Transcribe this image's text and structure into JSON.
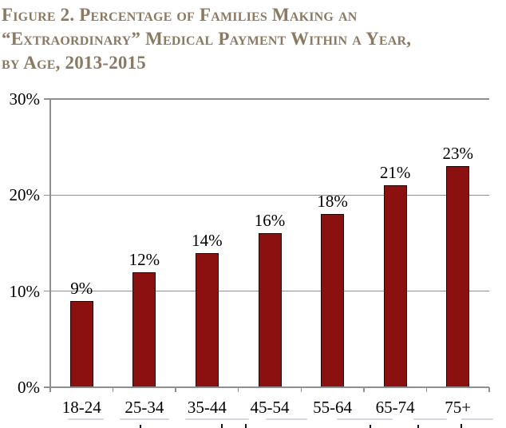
{
  "figure": {
    "title_lines": [
      "Figure 2. Percentage of Families Making an",
      "“Extraordinary” Medical Payment Within a Year,",
      "by Age, 2013-2015"
    ],
    "title_color": "#8b7961"
  },
  "chart_data": {
    "type": "bar",
    "title": "Figure 2. Percentage of Families Making an “Extraordinary” Medical Payment Within a Year, by Age, 2013-2015",
    "categories": [
      "18-24",
      "25-34",
      "35-44",
      "45-54",
      "55-64",
      "65-74",
      "75+"
    ],
    "values": [
      9,
      12,
      14,
      16,
      18,
      21,
      23
    ],
    "value_labels": [
      "9%",
      "12%",
      "14%",
      "16%",
      "18%",
      "21%",
      "23%"
    ],
    "xlabel": "",
    "ylabel": "",
    "ylim": [
      0,
      30
    ],
    "y_ticks": [
      {
        "value": 30,
        "label": "30%"
      },
      {
        "value": 20,
        "label": "20%"
      },
      {
        "value": 10,
        "label": "10%"
      },
      {
        "value": 0,
        "label": "0%"
      }
    ],
    "gridline_values": [
      30,
      20,
      10
    ],
    "grid_on": true,
    "legend_position": "none",
    "bar_color": "#8b1111",
    "bar_border_color": "#240101",
    "grid_color": "#8f8f8f",
    "axis_color": "#8f8f8f",
    "text_color": "#000000"
  }
}
